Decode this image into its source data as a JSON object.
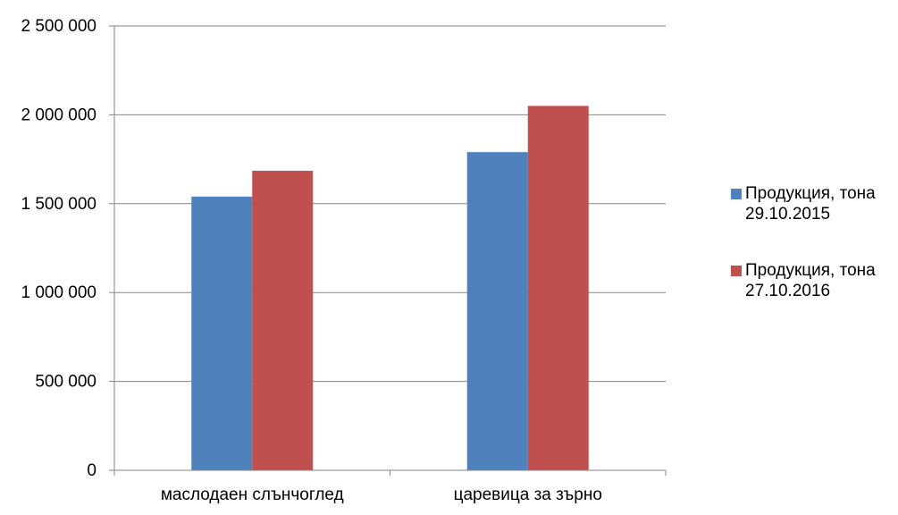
{
  "chart_data": {
    "type": "bar",
    "title": "",
    "xlabel": "",
    "ylabel": "",
    "categories": [
      "маслодаен слънчоглед",
      "царевица за зърно"
    ],
    "series": [
      {
        "name": "Продукция, тона 29.10.2015",
        "name_lines": [
          "Продукция, тона",
          "29.10.2015"
        ],
        "color": "#4F81BD",
        "values": [
          1540000,
          1790000
        ]
      },
      {
        "name": "Продукция, тона 27.10.2016",
        "name_lines": [
          "Продукция, тона",
          "27.10.2016"
        ],
        "color": "#C0504D",
        "values": [
          1685000,
          2050000
        ]
      }
    ],
    "ylim": [
      0,
      2500000
    ],
    "yticks": [
      0,
      500000,
      1000000,
      1500000,
      2000000,
      2500000
    ],
    "ytick_labels": [
      "0",
      "500 000",
      "1 000 000",
      "1 500 000",
      "2 000 000",
      "2 500 000"
    ],
    "grid": true,
    "legend_position": "right"
  }
}
